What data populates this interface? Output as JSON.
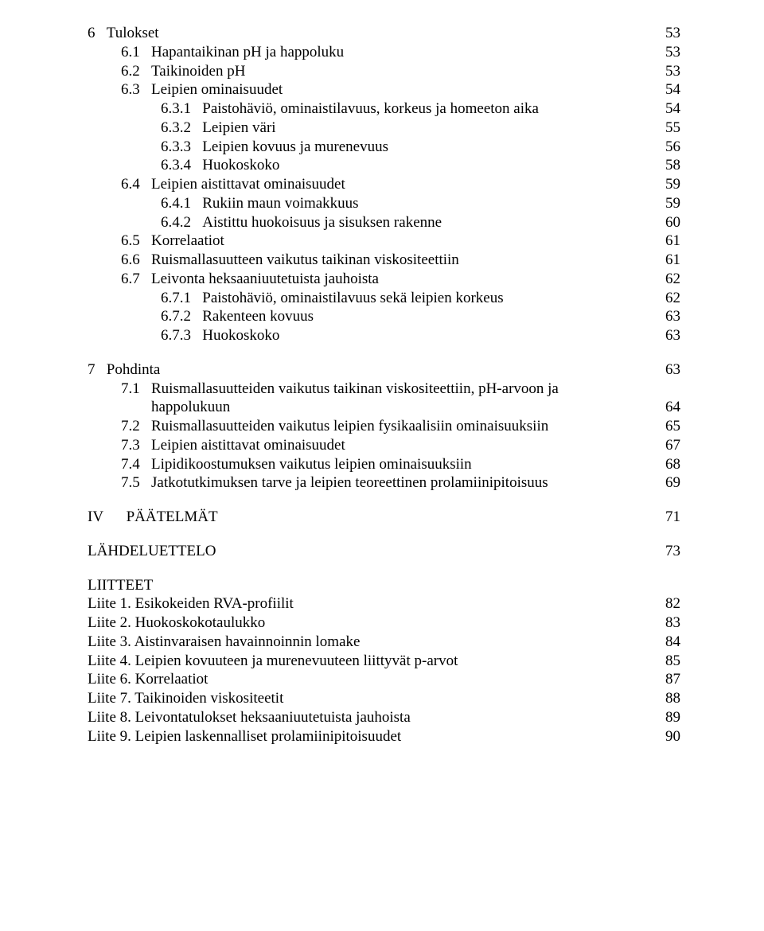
{
  "toc": [
    {
      "level": "sec",
      "indent": "",
      "num": "6",
      "label": "Tulokset",
      "page": "53"
    },
    {
      "level": "in1",
      "num": "6.1",
      "label": "Hapantaikinan pH ja happoluku",
      "page": "53"
    },
    {
      "level": "in1",
      "num": "6.2",
      "label": "Taikinoiden pH",
      "page": "53"
    },
    {
      "level": "in1",
      "num": "6.3",
      "label": "Leipien ominaisuudet",
      "page": "54"
    },
    {
      "level": "in2",
      "num": "6.3.1",
      "label": "Paistohäviö, ominaistilavuus, korkeus ja homeeton aika",
      "page": "54"
    },
    {
      "level": "in2",
      "num": "6.3.2",
      "label": "Leipien väri",
      "page": "55"
    },
    {
      "level": "in2",
      "num": "6.3.3",
      "label": "Leipien kovuus ja murenevuus",
      "page": "56"
    },
    {
      "level": "in2",
      "num": "6.3.4",
      "label": "Huokoskoko",
      "page": "58"
    },
    {
      "level": "in1",
      "num": "6.4",
      "label": "Leipien aistittavat ominaisuudet",
      "page": "59"
    },
    {
      "level": "in2",
      "num": "6.4.1",
      "label": "Rukiin maun voimakkuus",
      "page": "59"
    },
    {
      "level": "in2",
      "num": "6.4.2",
      "label": "Aistittu huokoisuus ja sisuksen rakenne",
      "page": "60"
    },
    {
      "level": "in1",
      "num": "6.5",
      "label": "Korrelaatiot",
      "page": "61"
    },
    {
      "level": "in1",
      "num": "6.6",
      "label": "Ruismallasuutteen vaikutus taikinan viskositeettiin",
      "page": "61"
    },
    {
      "level": "in1",
      "num": "6.7",
      "label": "Leivonta heksaaniuutetuista jauhoista",
      "page": "62"
    },
    {
      "level": "in2",
      "num": "6.7.1",
      "label": "Paistohäviö, ominaistilavuus sekä leipien korkeus",
      "page": "62"
    },
    {
      "level": "in2",
      "num": "6.7.2",
      "label": "Rakenteen kovuus",
      "page": "63"
    },
    {
      "level": "in2",
      "num": "6.7.3",
      "label": "Huokoskoko",
      "page": "63"
    },
    {
      "level": "gap"
    },
    {
      "level": "sec",
      "num": "7",
      "label": "Pohdinta",
      "page": "63"
    },
    {
      "level": "in3",
      "num": "7.1",
      "label_multiline": [
        "Ruismallasuutteiden vaikutus taikinan viskositeettiin, pH-arvoon ja",
        "happolukuun"
      ],
      "page": "64"
    },
    {
      "level": "in1",
      "num": "7.2",
      "label": "Ruismallasuutteiden vaikutus leipien fysikaalisiin ominaisuuksiin",
      "page": "65"
    },
    {
      "level": "in1",
      "num": "7.3",
      "label": "Leipien aistittavat ominaisuudet",
      "page": "67"
    },
    {
      "level": "in1",
      "num": "7.4",
      "label": "Lipidikoostumuksen vaikutus leipien ominaisuuksiin",
      "page": "68"
    },
    {
      "level": "in1",
      "num": "7.5",
      "label": "Jatkotutkimuksen tarve ja leipien teoreettinen prolamiinipitoisuus",
      "page": "69"
    }
  ],
  "part": {
    "num": "IV",
    "label": "PÄÄTELMÄT",
    "page": "71"
  },
  "refs": {
    "label": "LÄHDELUETTELO",
    "page": "73"
  },
  "appendix_header": "LIITTEET",
  "appendices": [
    {
      "label": "Liite 1. Esikokeiden RVA-profiilit",
      "page": "82"
    },
    {
      "label": "Liite 2. Huokoskokotaulukko",
      "page": "83"
    },
    {
      "label": "Liite 3. Aistinvaraisen havainnoinnin lomake",
      "page": "84"
    },
    {
      "label": "Liite 4. Leipien kovuuteen ja murenevuuteen liittyvät p-arvot",
      "page": "85"
    },
    {
      "label": "Liite 6. Korrelaatiot",
      "page": "87"
    },
    {
      "label": "Liite 7. Taikinoiden viskositeetit",
      "page": "88"
    },
    {
      "label": "Liite 8. Leivontatulokset heksaaniuutetuista jauhoista",
      "page": "89"
    },
    {
      "label": "Liite 9. Leipien laskennalliset prolamiinipitoisuudet",
      "page": "90"
    }
  ]
}
